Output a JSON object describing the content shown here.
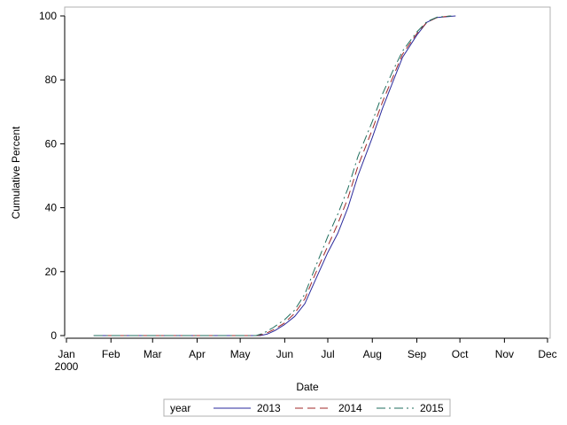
{
  "chart_data": {
    "type": "line",
    "xlabel": "Date",
    "ylabel": "Cumulative Percent",
    "xlim": [
      "2000-01-01",
      "2000-12-01"
    ],
    "ylim": [
      0,
      100
    ],
    "x_ticks": [
      {
        "date": "2000-01-01",
        "label": "Jan",
        "sublabel": "2000"
      },
      {
        "date": "2000-02-01",
        "label": "Feb"
      },
      {
        "date": "2000-03-01",
        "label": "Mar"
      },
      {
        "date": "2000-04-01",
        "label": "Apr"
      },
      {
        "date": "2000-05-01",
        "label": "May"
      },
      {
        "date": "2000-06-01",
        "label": "Jun"
      },
      {
        "date": "2000-07-01",
        "label": "Jul"
      },
      {
        "date": "2000-08-01",
        "label": "Aug"
      },
      {
        "date": "2000-09-01",
        "label": "Sep"
      },
      {
        "date": "2000-10-01",
        "label": "Oct"
      },
      {
        "date": "2000-11-01",
        "label": "Nov"
      },
      {
        "date": "2000-12-01",
        "label": "Dec"
      }
    ],
    "y_ticks": [
      0,
      20,
      40,
      60,
      80,
      100
    ],
    "grid": false,
    "legend": {
      "title": "year",
      "position": "bottom-center"
    },
    "series": [
      {
        "name": "2013",
        "color": "#2a2a9c",
        "dash": "solid",
        "points": [
          [
            "2000-01-20",
            0
          ],
          [
            "2000-05-15",
            0
          ],
          [
            "2000-05-20",
            0.5
          ],
          [
            "2000-05-25",
            1.5
          ],
          [
            "2000-06-01",
            3.5
          ],
          [
            "2000-06-08",
            6
          ],
          [
            "2000-06-15",
            10
          ],
          [
            "2000-06-22",
            17
          ],
          [
            "2000-07-01",
            26
          ],
          [
            "2000-07-08",
            32
          ],
          [
            "2000-07-15",
            40
          ],
          [
            "2000-07-22",
            50
          ],
          [
            "2000-08-01",
            62
          ],
          [
            "2000-08-08",
            71
          ],
          [
            "2000-08-15",
            79
          ],
          [
            "2000-08-22",
            87
          ],
          [
            "2000-09-01",
            94
          ],
          [
            "2000-09-08",
            98
          ],
          [
            "2000-09-15",
            99.5
          ],
          [
            "2000-09-28",
            100
          ]
        ]
      },
      {
        "name": "2014",
        "color": "#a02828",
        "dash": "dash",
        "points": [
          [
            "2000-01-20",
            0
          ],
          [
            "2000-05-13",
            0
          ],
          [
            "2000-05-18",
            0.5
          ],
          [
            "2000-05-25",
            2
          ],
          [
            "2000-06-01",
            4
          ],
          [
            "2000-06-08",
            7
          ],
          [
            "2000-06-15",
            11.5
          ],
          [
            "2000-06-22",
            19
          ],
          [
            "2000-07-01",
            28
          ],
          [
            "2000-07-08",
            35
          ],
          [
            "2000-07-15",
            43
          ],
          [
            "2000-07-22",
            53
          ],
          [
            "2000-08-01",
            64.5
          ],
          [
            "2000-08-08",
            73
          ],
          [
            "2000-08-15",
            80.5
          ],
          [
            "2000-08-22",
            88
          ],
          [
            "2000-09-01",
            94.5
          ],
          [
            "2000-09-08",
            98
          ],
          [
            "2000-09-15",
            99.5
          ],
          [
            "2000-09-25",
            100
          ]
        ]
      },
      {
        "name": "2015",
        "color": "#1f6e5e",
        "dash": "dashdot",
        "points": [
          [
            "2000-01-20",
            0
          ],
          [
            "2000-05-12",
            0
          ],
          [
            "2000-05-17",
            0.7
          ],
          [
            "2000-05-24",
            2.5
          ],
          [
            "2000-06-01",
            5
          ],
          [
            "2000-06-08",
            8
          ],
          [
            "2000-06-15",
            13
          ],
          [
            "2000-06-22",
            21
          ],
          [
            "2000-07-01",
            31
          ],
          [
            "2000-07-08",
            38
          ],
          [
            "2000-07-15",
            46
          ],
          [
            "2000-07-22",
            56
          ],
          [
            "2000-08-01",
            67
          ],
          [
            "2000-08-08",
            75.5
          ],
          [
            "2000-08-15",
            82.5
          ],
          [
            "2000-08-22",
            89
          ],
          [
            "2000-09-01",
            95
          ],
          [
            "2000-09-08",
            98.2
          ],
          [
            "2000-09-15",
            99.6
          ],
          [
            "2000-09-25",
            100
          ]
        ]
      }
    ]
  }
}
